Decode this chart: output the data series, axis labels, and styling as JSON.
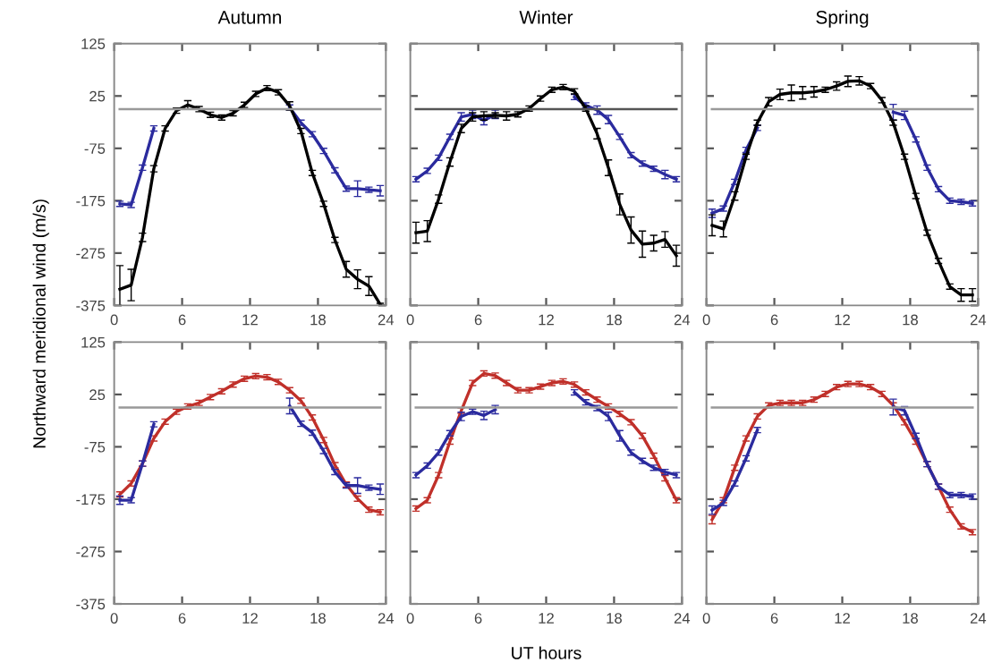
{
  "chart_data": [
    {
      "type": "line",
      "title": "Autumn",
      "ylabel": "Northward meridional wind (m/s)",
      "xlim": [
        0,
        24
      ],
      "ylim": [
        -375,
        125
      ],
      "xticks": [
        0,
        6,
        12,
        18,
        24
      ],
      "yticks": [
        -375,
        -275,
        -175,
        -75,
        25,
        125
      ],
      "grid": false,
      "ref_lines": [
        {
          "axis": "y",
          "value": 0,
          "color": "#999999"
        }
      ],
      "x": [
        0.5,
        1.5,
        2.5,
        3.5,
        4.5,
        5.5,
        6.5,
        7.5,
        8.5,
        9.5,
        10.5,
        11.5,
        12.5,
        13.5,
        14.5,
        15.5,
        16.5,
        17.5,
        18.5,
        19.5,
        20.5,
        21.5,
        22.5,
        23.5
      ],
      "series": [
        {
          "color": "#2b2b9e",
          "values": [
            -181,
            -183,
            -112,
            -37,
            null,
            null,
            null,
            null,
            null,
            null,
            null,
            null,
            null,
            null,
            null,
            3,
            -26,
            -48,
            -80,
            -117,
            -152,
            -152,
            -154,
            -156
          ],
          "errors": [
            5,
            5,
            5,
            5,
            null,
            null,
            null,
            null,
            null,
            null,
            null,
            null,
            null,
            null,
            null,
            5,
            5,
            5,
            5,
            5,
            5,
            15,
            5,
            10
          ]
        },
        {
          "color": "#000000",
          "values": [
            -344,
            -336,
            -245,
            -114,
            -37,
            -3,
            8,
            0,
            -11,
            -16,
            -8,
            8,
            29,
            40,
            32,
            6,
            -42,
            -122,
            -181,
            -250,
            -306,
            -325,
            -338,
            -373
          ],
          "errors": [
            45,
            30,
            8,
            6,
            5,
            5,
            8,
            5,
            5,
            5,
            5,
            5,
            5,
            5,
            5,
            8,
            5,
            5,
            5,
            5,
            15,
            18,
            18,
            2
          ]
        }
      ]
    },
    {
      "type": "line",
      "title": "Winter",
      "xlim": [
        0,
        24
      ],
      "ylim": [
        -375,
        125
      ],
      "xticks": [
        0,
        6,
        12,
        18,
        24
      ],
      "yticks": [
        -375,
        -275,
        -175,
        -75,
        25,
        125
      ],
      "tick_labels": "x",
      "grid": false,
      "ref_lines": [
        {
          "axis": "y",
          "value": 0,
          "color": "#555555"
        }
      ],
      "x": [
        0.5,
        1.5,
        2.5,
        3.5,
        4.5,
        5.5,
        6.5,
        7.5,
        8.5,
        9.5,
        10.5,
        11.5,
        12.5,
        13.5,
        14.5,
        15.5,
        16.5,
        17.5,
        18.5,
        19.5,
        20.5,
        21.5,
        22.5,
        23.5
      ],
      "series": [
        {
          "color": "#2b2b9e",
          "values": [
            -134,
            -118,
            -93,
            -53,
            -15,
            -10,
            -22,
            -10,
            null,
            null,
            null,
            null,
            null,
            null,
            23,
            7,
            -2,
            -20,
            -53,
            -88,
            -104,
            -114,
            -125,
            -134
          ],
          "errors": [
            5,
            5,
            5,
            5,
            8,
            8,
            8,
            8,
            null,
            null,
            null,
            null,
            null,
            null,
            5,
            5,
            8,
            8,
            5,
            5,
            5,
            5,
            8,
            5
          ]
        },
        {
          "color": "#000000",
          "values": [
            -236,
            -233,
            -172,
            -101,
            -37,
            -15,
            -13,
            -12,
            -13,
            -10,
            1,
            20,
            37,
            42,
            34,
            1,
            -47,
            -112,
            -182,
            -231,
            -258,
            -256,
            -249,
            -280
          ],
          "errors": [
            20,
            20,
            8,
            8,
            8,
            8,
            8,
            5,
            8,
            5,
            5,
            5,
            5,
            5,
            5,
            5,
            10,
            15,
            20,
            25,
            25,
            15,
            15,
            20
          ]
        }
      ]
    },
    {
      "type": "line",
      "title": "Spring",
      "xlim": [
        0,
        24
      ],
      "ylim": [
        -375,
        125
      ],
      "xticks": [
        0,
        6,
        12,
        18,
        24
      ],
      "yticks": [
        -375,
        -275,
        -175,
        -75,
        25,
        125
      ],
      "tick_labels": "x",
      "grid": false,
      "ref_lines": [
        {
          "axis": "y",
          "value": 0,
          "color": "#999999"
        }
      ],
      "x": [
        0.5,
        1.5,
        2.5,
        3.5,
        4.5,
        5.5,
        6.5,
        7.5,
        8.5,
        9.5,
        10.5,
        11.5,
        12.5,
        13.5,
        14.5,
        15.5,
        16.5,
        17.5,
        18.5,
        19.5,
        20.5,
        21.5,
        22.5,
        23.5
      ],
      "series": [
        {
          "color": "#2b2b9e",
          "values": [
            -199,
            -190,
            -139,
            -78,
            -36,
            null,
            null,
            null,
            null,
            null,
            null,
            null,
            null,
            null,
            null,
            null,
            -6,
            -12,
            -58,
            -112,
            -153,
            -175,
            -177,
            -180
          ],
          "errors": [
            8,
            5,
            5,
            5,
            5,
            null,
            null,
            null,
            null,
            null,
            null,
            null,
            null,
            null,
            null,
            null,
            15,
            8,
            5,
            5,
            5,
            5,
            5,
            5
          ]
        },
        {
          "color": "#000000",
          "values": [
            -222,
            -229,
            -166,
            -91,
            -26,
            14,
            28,
            31,
            31,
            33,
            37,
            44,
            53,
            54,
            44,
            17,
            -26,
            -91,
            -166,
            -236,
            -290,
            -339,
            -355,
            -355
          ],
          "errors": [
            20,
            15,
            8,
            5,
            5,
            8,
            10,
            15,
            12,
            10,
            5,
            8,
            10,
            8,
            5,
            5,
            5,
            5,
            5,
            5,
            5,
            5,
            12,
            12
          ]
        }
      ]
    },
    {
      "type": "line",
      "xlim": [
        0,
        24
      ],
      "ylim": [
        -375,
        125
      ],
      "xticks": [
        0,
        6,
        12,
        18,
        24
      ],
      "yticks": [
        -375,
        -275,
        -175,
        -75,
        25,
        125
      ],
      "grid": false,
      "ref_lines": [
        {
          "axis": "y",
          "value": 0,
          "color": "#999999"
        }
      ],
      "x": [
        0.5,
        1.5,
        2.5,
        3.5,
        4.5,
        5.5,
        6.5,
        7.5,
        8.5,
        9.5,
        10.5,
        11.5,
        12.5,
        13.5,
        14.5,
        15.5,
        16.5,
        17.5,
        18.5,
        19.5,
        20.5,
        21.5,
        22.5,
        23.5
      ],
      "series": [
        {
          "color": "#c0302a",
          "values": [
            -166,
            -145,
            -107,
            -59,
            -27,
            -8,
            2,
            9,
            20,
            31,
            44,
            55,
            60,
            58,
            49,
            33,
            13,
            -19,
            -62,
            -110,
            -147,
            -174,
            -195,
            -200
          ],
          "errors": [
            5,
            5,
            5,
            5,
            5,
            5,
            5,
            5,
            5,
            5,
            5,
            5,
            5,
            5,
            5,
            5,
            5,
            5,
            5,
            5,
            5,
            5,
            5,
            5
          ]
        },
        {
          "color": "#2b2b9e",
          "values": [
            -177,
            -177,
            -107,
            -32,
            null,
            null,
            null,
            null,
            null,
            null,
            null,
            null,
            null,
            null,
            null,
            3,
            -31,
            -48,
            -83,
            -123,
            -149,
            -149,
            -153,
            -156
          ],
          "errors": [
            8,
            5,
            5,
            5,
            null,
            null,
            null,
            null,
            null,
            null,
            null,
            null,
            null,
            null,
            null,
            15,
            5,
            5,
            5,
            5,
            5,
            15,
            5,
            10
          ]
        }
      ]
    },
    {
      "type": "line",
      "xlabel": "UT hours",
      "xlim": [
        0,
        24
      ],
      "ylim": [
        -375,
        125
      ],
      "xticks": [
        0,
        6,
        12,
        18,
        24
      ],
      "yticks": [
        -375,
        -275,
        -175,
        -75,
        25,
        125
      ],
      "tick_labels": "x",
      "grid": false,
      "ref_lines": [
        {
          "axis": "y",
          "value": 0,
          "color": "#999999"
        }
      ],
      "x": [
        0.5,
        1.5,
        2.5,
        3.5,
        4.5,
        5.5,
        6.5,
        7.5,
        8.5,
        9.5,
        10.5,
        11.5,
        12.5,
        13.5,
        14.5,
        15.5,
        16.5,
        17.5,
        18.5,
        19.5,
        20.5,
        21.5,
        22.5,
        23.5
      ],
      "series": [
        {
          "color": "#c0302a",
          "values": [
            -193,
            -177,
            -129,
            -65,
            -6,
            47,
            65,
            61,
            47,
            33,
            33,
            40,
            47,
            50,
            44,
            29,
            15,
            2,
            -12,
            -28,
            -54,
            -92,
            -135,
            -177
          ],
          "errors": [
            5,
            5,
            5,
            5,
            5,
            5,
            5,
            5,
            5,
            5,
            5,
            5,
            5,
            5,
            5,
            5,
            5,
            5,
            5,
            5,
            5,
            5,
            5,
            5
          ]
        },
        {
          "color": "#2b2b9e",
          "values": [
            -129,
            -111,
            -86,
            -49,
            -17,
            -8,
            -15,
            -4,
            null,
            null,
            null,
            null,
            null,
            null,
            29,
            10,
            -1,
            -17,
            -54,
            -86,
            -102,
            -115,
            -123,
            -129
          ],
          "errors": [
            5,
            5,
            5,
            5,
            8,
            5,
            8,
            8,
            null,
            null,
            null,
            null,
            null,
            null,
            5,
            5,
            5,
            8,
            10,
            5,
            5,
            5,
            5,
            5
          ]
        }
      ]
    },
    {
      "type": "line",
      "xlim": [
        0,
        24
      ],
      "ylim": [
        -375,
        125
      ],
      "xticks": [
        0,
        6,
        12,
        18,
        24
      ],
      "yticks": [
        -375,
        -275,
        -175,
        -75,
        25,
        125
      ],
      "tick_labels": "x",
      "grid": false,
      "ref_lines": [
        {
          "axis": "y",
          "value": 0,
          "color": "#999999"
        }
      ],
      "x": [
        0.5,
        1.5,
        2.5,
        3.5,
        4.5,
        5.5,
        6.5,
        7.5,
        8.5,
        9.5,
        10.5,
        11.5,
        12.5,
        13.5,
        14.5,
        15.5,
        16.5,
        17.5,
        18.5,
        19.5,
        20.5,
        21.5,
        22.5,
        23.5
      ],
      "series": [
        {
          "color": "#c0302a",
          "values": [
            -214,
            -177,
            -115,
            -59,
            -17,
            4,
            9,
            9,
            9,
            15,
            26,
            39,
            45,
            45,
            39,
            26,
            4,
            -28,
            -65,
            -108,
            -151,
            -195,
            -227,
            -238
          ],
          "errors": [
            8,
            5,
            5,
            5,
            5,
            5,
            5,
            5,
            5,
            5,
            5,
            5,
            5,
            5,
            5,
            5,
            5,
            5,
            5,
            5,
            5,
            5,
            5,
            5
          ]
        },
        {
          "color": "#2b2b9e",
          "values": [
            -196,
            -182,
            -145,
            -97,
            -43,
            null,
            null,
            null,
            null,
            null,
            null,
            null,
            null,
            null,
            null,
            null,
            1,
            -6,
            -54,
            -108,
            -151,
            -167,
            -167,
            -170
          ],
          "errors": [
            8,
            5,
            5,
            5,
            5,
            null,
            null,
            null,
            null,
            null,
            null,
            null,
            null,
            null,
            null,
            null,
            15,
            8,
            5,
            5,
            5,
            5,
            5,
            5
          ]
        }
      ]
    }
  ]
}
